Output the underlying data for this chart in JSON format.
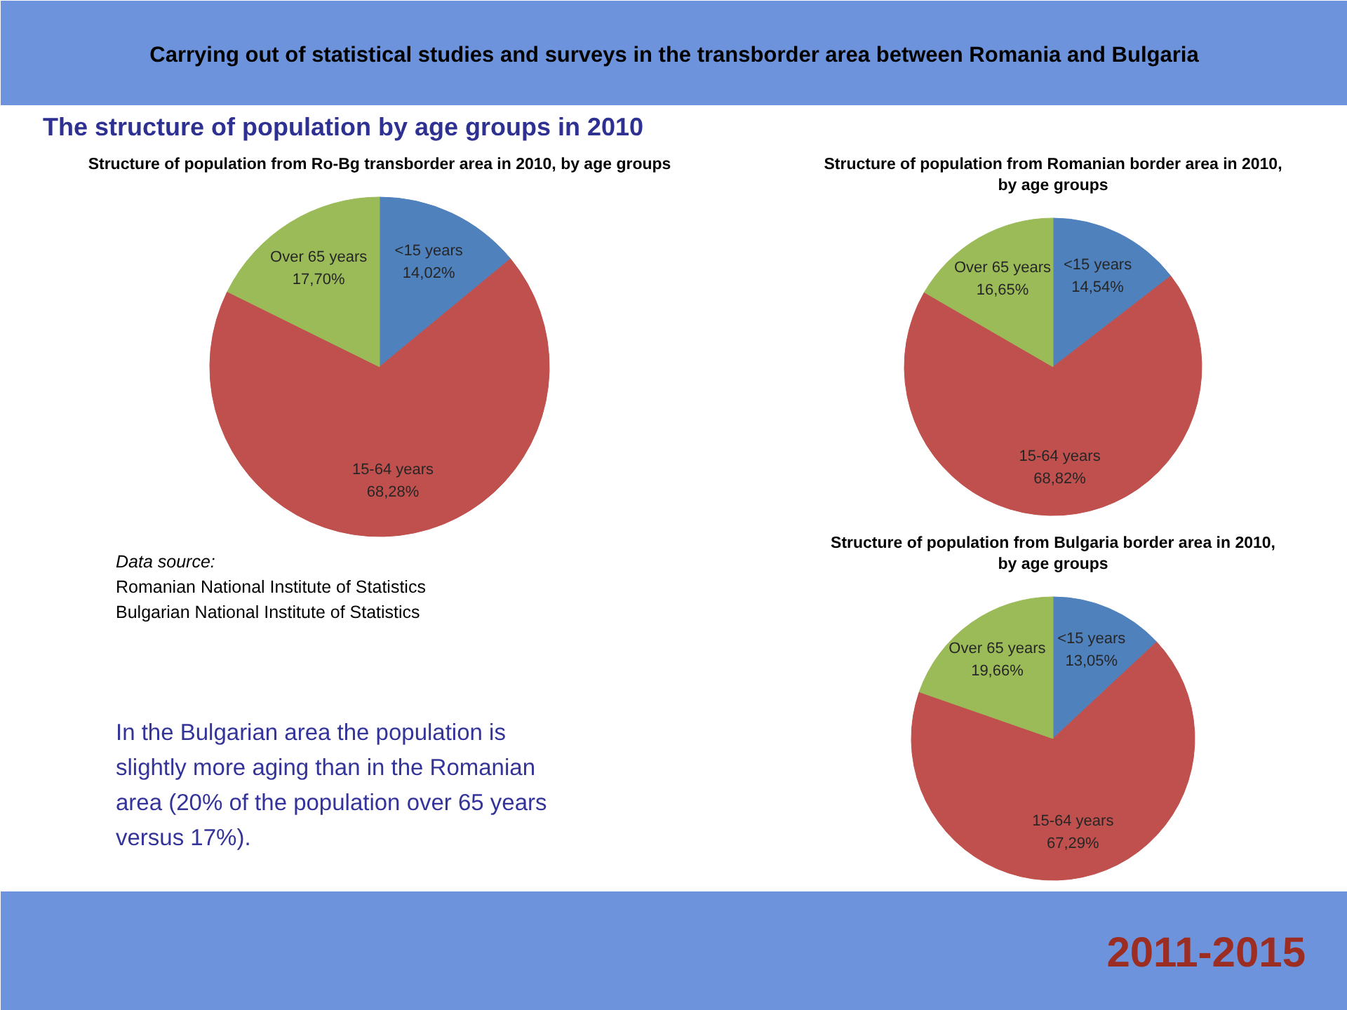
{
  "chart_data": [
    {
      "type": "other",
      "title": "Carrying out of statistical studies and surveys in the transborder area between Romania and Bulgaria",
      "subtitle": "The structure of population by age groups in 2010",
      "annotations": [
        "Data source:",
        "Romanian National Institute of Statistics",
        "Bulgarian National Institute of Statistics",
        "In the Bulgarian area the population is slightly more aging than in the Romanian area (20% of the population over 65 years versus 17%).",
        "2011-2015"
      ]
    },
    {
      "type": "pie",
      "title": "Structure of population from Ro-Bg transborder area in 2010, by age groups",
      "categories": [
        "<15 years",
        "15-64 years",
        "Over 65 years"
      ],
      "values": [
        14.02,
        68.28,
        17.7
      ],
      "value_labels": [
        "14,02%",
        "68,28%",
        "17,70%"
      ],
      "colors": [
        "#4f81bd",
        "#c0504d",
        "#9bbb59"
      ]
    },
    {
      "type": "pie",
      "title": "Structure of population from Romanian border area in 2010, by age groups",
      "categories": [
        "<15 years",
        "15-64 years",
        "Over 65 years"
      ],
      "values": [
        14.54,
        68.82,
        16.65
      ],
      "value_labels": [
        "14,54%",
        "68,82%",
        "16,65%"
      ],
      "colors": [
        "#4f81bd",
        "#c0504d",
        "#9bbb59"
      ]
    },
    {
      "type": "pie",
      "title": "Structure of population from Bulgaria border area in 2010, by age groups",
      "categories": [
        "<15 years",
        "15-64 years",
        "Over 65 years"
      ],
      "values": [
        13.05,
        67.29,
        19.66
      ],
      "value_labels": [
        "13,05%",
        "67,29%",
        "19,66%"
      ],
      "colors": [
        "#4f81bd",
        "#c0504d",
        "#9bbb59"
      ]
    }
  ]
}
